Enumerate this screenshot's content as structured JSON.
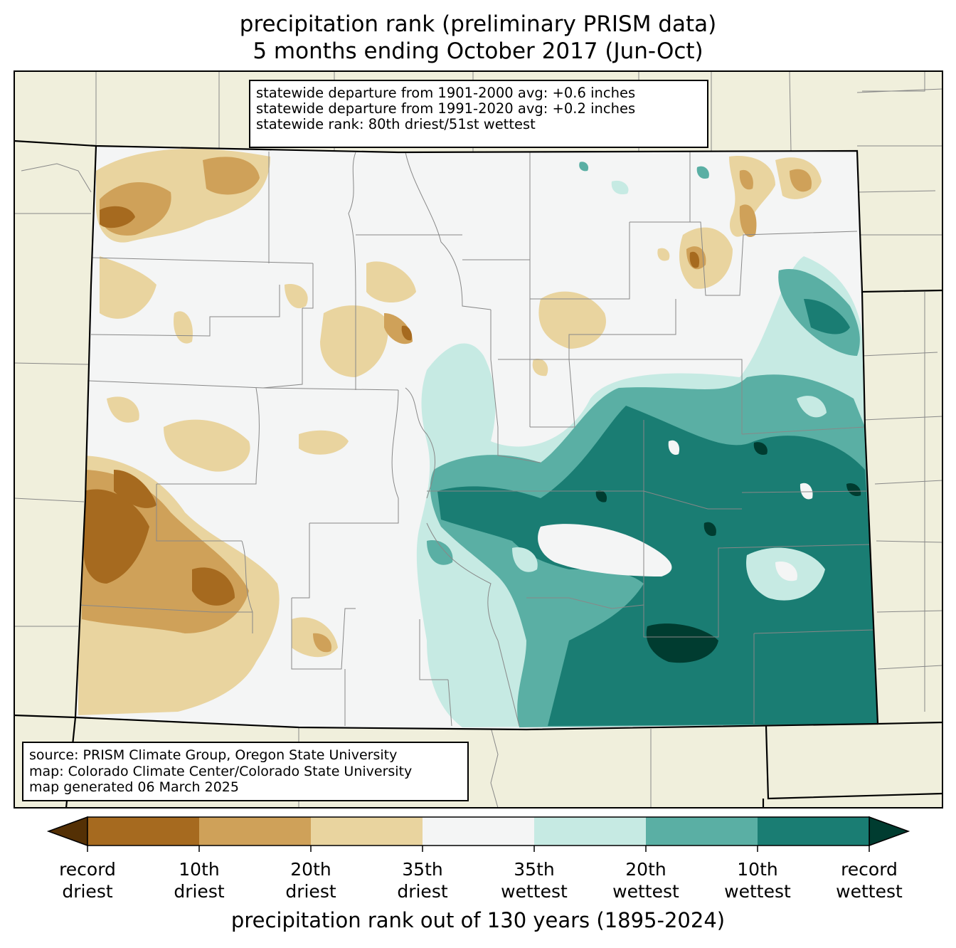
{
  "title": {
    "line1": "precipitation rank (preliminary PRISM data)",
    "line2": "5 months ending October 2017 (Jun-Oct)"
  },
  "stats_box": {
    "line1": "statewide departure from 1901-2000 avg: +0.6 inches",
    "line2": "statewide departure from 1991-2020 avg: +0.2 inches",
    "line3": "statewide rank: 80th driest/51st wettest"
  },
  "credits_box": {
    "line1": "source: PRISM Climate Group, Oregon State University",
    "line2": "map: Colorado Climate Center/Colorado State University",
    "line3": "map generated 06 March 2025"
  },
  "colorbar": {
    "title": "precipitation rank out of 130 years (1895-2024)",
    "extend_low_color": "#543005",
    "extend_high_color": "#003c30",
    "bins": [
      {
        "color": "#a66a1f"
      },
      {
        "color": "#cfa159"
      },
      {
        "color": "#e9d49f"
      },
      {
        "color": "#f4f5f5"
      },
      {
        "color": "#c6eae3"
      },
      {
        "color": "#5aafa4"
      },
      {
        "color": "#1a7d73"
      }
    ],
    "ticks": [
      {
        "l1": "record",
        "l2": "driest"
      },
      {
        "l1": "10th",
        "l2": "driest"
      },
      {
        "l1": "20th",
        "l2": "driest"
      },
      {
        "l1": "35th",
        "l2": "driest"
      },
      {
        "l1": "35th",
        "l2": "wettest"
      },
      {
        "l1": "20th",
        "l2": "wettest"
      },
      {
        "l1": "10th",
        "l2": "wettest"
      },
      {
        "l1": "record",
        "l2": "wettest"
      }
    ]
  },
  "map_colors": {
    "land_outside": "#f0efdc",
    "state_fill": "#f4f5f5",
    "county_line": "#888888",
    "state_line": "#000000"
  }
}
